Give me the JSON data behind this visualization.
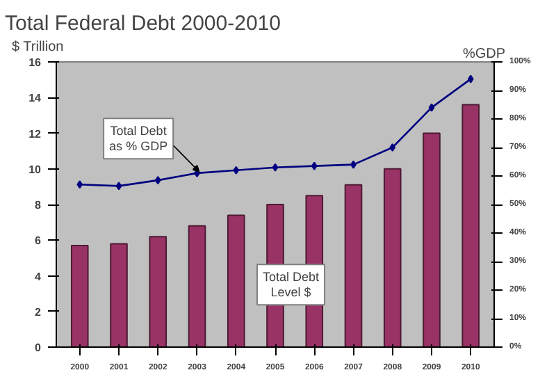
{
  "chart_data": {
    "type": "bar",
    "title": "Total Federal Debt 2000-2010",
    "ylabel": "$ Trillion",
    "y2label": "%GDP",
    "categories": [
      "2000",
      "2001",
      "2002",
      "2003",
      "2004",
      "2005",
      "2006",
      "2007",
      "2008",
      "2009",
      "2010"
    ],
    "series": [
      {
        "color": "#993366",
        "values": [
          5.7,
          5.8,
          6.2,
          6.8,
          7.4,
          8.0,
          8.5,
          9.1,
          10.0,
          12.0,
          13.6
        ]
      },
      {
        "type": "line",
        "axis": "y2",
        "color": "#000080",
        "values": [
          57,
          56.5,
          58.5,
          61,
          62,
          63,
          63.5,
          64,
          70,
          84,
          94
        ]
      }
    ],
    "ylim": [
      0,
      16
    ],
    "yticks": [
      0,
      2,
      4,
      6,
      8,
      10,
      12,
      14,
      16
    ],
    "y2lim": [
      0,
      100
    ],
    "y2ticks": [
      {
        "value": 0,
        "label": "0%"
      },
      {
        "value": 10,
        "label": "10%"
      },
      {
        "value": 20,
        "label": "20%"
      },
      {
        "value": 30,
        "label": "30%"
      },
      {
        "value": 40,
        "label": "40%"
      },
      {
        "value": 50,
        "label": "50%"
      },
      {
        "value": 60,
        "label": "60%"
      },
      {
        "value": 70,
        "label": "70%"
      },
      {
        "value": 80,
        "label": "80%"
      },
      {
        "value": 90,
        "label": "90%"
      },
      {
        "value": 100,
        "label": "100%"
      }
    ],
    "annotations": [
      "Total Debt\nas % GDP",
      "Total Debt\nLevel $"
    ],
    "grid": false,
    "marker": "diamond",
    "line_style": "solid"
  }
}
